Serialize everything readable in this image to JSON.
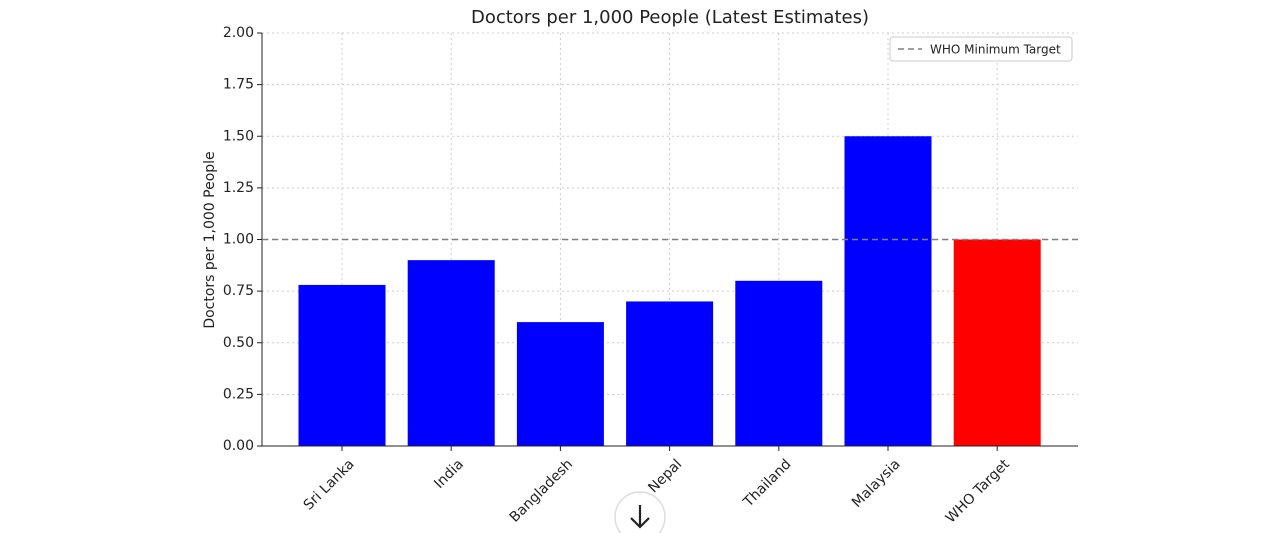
{
  "chart_data": {
    "type": "bar",
    "title": "Doctors per 1,000 People (Latest Estimates)",
    "y_label": "Doctors per 1,000 People",
    "categories": [
      "Sri Lanka",
      "India",
      "Bangladesh",
      "Nepal",
      "Thailand",
      "Malaysia",
      "WHO Target"
    ],
    "values": [
      0.78,
      0.9,
      0.6,
      0.7,
      0.8,
      1.5,
      1.0
    ],
    "colors": [
      "#0000ff",
      "#0000ff",
      "#0000ff",
      "#0000ff",
      "#0000ff",
      "#0000ff",
      "#ff0000"
    ],
    "ylim": [
      0,
      2
    ],
    "yticks": [
      {
        "value": 0,
        "label": "0.00"
      },
      {
        "value": 0.25,
        "label": "0.25"
      },
      {
        "value": 0.5,
        "label": "0.50"
      },
      {
        "value": 0.75,
        "label": "0.75"
      },
      {
        "value": 1,
        "label": "1.00"
      },
      {
        "value": 1.25,
        "label": "1.25"
      },
      {
        "value": 1.5,
        "label": "1.50"
      },
      {
        "value": 1.75,
        "label": "1.75"
      },
      {
        "value": 2,
        "label": "2.00"
      }
    ],
    "grid": true,
    "reference_line": {
      "value": 1.0,
      "label": "WHO Minimum Target",
      "color": "#808080",
      "style": "dashed"
    },
    "legend": "upper right"
  }
}
